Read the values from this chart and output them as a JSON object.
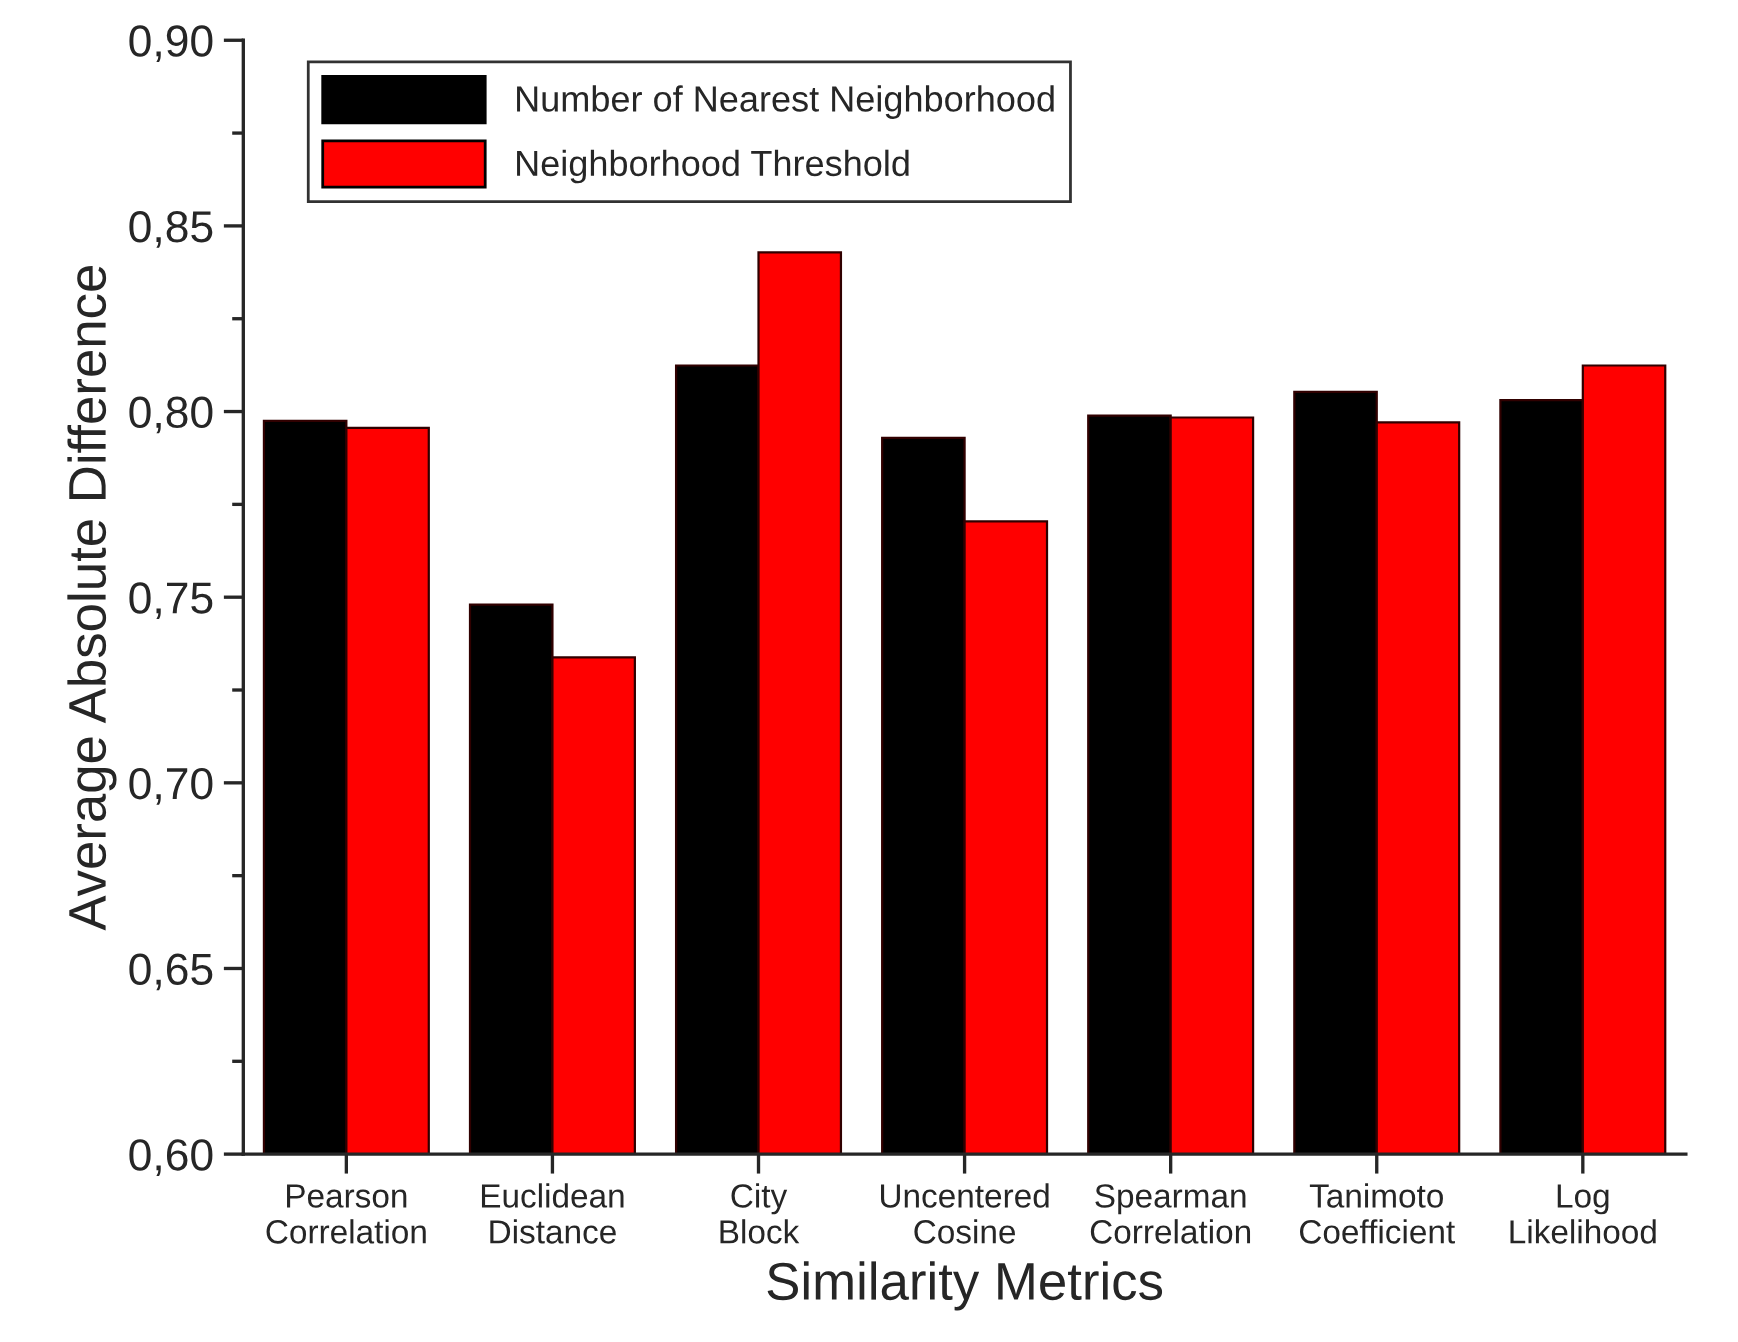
{
  "chart_data": {
    "type": "bar",
    "xlabel": "Similarity Metrics",
    "ylabel": "Average Absolute Difference",
    "categories": [
      "Pearson\nCorrelation",
      "Euclidean\nDistance",
      "City\nBlock",
      "Uncentered\nCosine",
      "Spearman\nCorrelation",
      "Tanimoto\nCoefficient",
      "Log\nLikelihood"
    ],
    "series": [
      {
        "name": "Number of Nearest Neighborhood",
        "color": "#000000",
        "values": [
          0.7975,
          0.748,
          0.8124,
          0.7929,
          0.7989,
          0.8053,
          0.8031
        ]
      },
      {
        "name": "Neighborhood Threshold",
        "color": "#ff0000",
        "values": [
          0.7956,
          0.7338,
          0.8429,
          0.7704,
          0.7984,
          0.7971,
          0.8124
        ]
      }
    ],
    "ylim": [
      0.6,
      0.9
    ],
    "yticks": [
      {
        "value": 0.6,
        "label": "0,60"
      },
      {
        "value": 0.65,
        "label": "0,65"
      },
      {
        "value": 0.7,
        "label": "0,70"
      },
      {
        "value": 0.75,
        "label": "0,75"
      },
      {
        "value": 0.8,
        "label": "0,80"
      },
      {
        "value": 0.85,
        "label": "0,85"
      },
      {
        "value": 0.9,
        "label": "0,90"
      }
    ],
    "grid": false,
    "legend": "top left"
  }
}
